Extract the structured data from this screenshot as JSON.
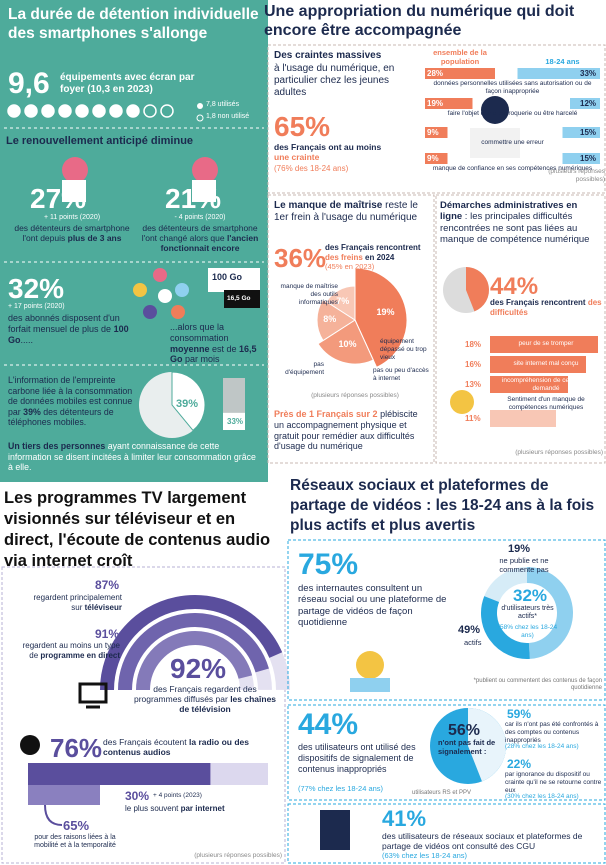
{
  "left_top": {
    "title": "La durée de détention individuelle des smartphones s'allonge",
    "equipment_value": "9,6",
    "equipment_text": "équipements avec écran par foyer (10,3 en 2023)",
    "legend_used": "7,8 utilisés",
    "legend_unused": "1,8 non utilisé"
  },
  "renewal": {
    "title": "Le renouvellement anticipé diminue",
    "stats": [
      {
        "value": "27%",
        "change": "+ 11 points (2020)",
        "text": "des détenteurs de smartphone l'ont depuis ",
        "bold": "plus de 3 ans"
      },
      {
        "value": "21%",
        "change": "- 4 points (2020)",
        "text": "des détenteurs de smartphone l'ont changé alors que ",
        "bold": "l'ancien fonctionnait encore"
      }
    ]
  },
  "data_plan": {
    "value": "32%",
    "change": "+ 17 points (2020)",
    "text": "des abonnés disposent d'un forfait mensuel de plus de ",
    "bold": "100 Go",
    "text_end": ".....",
    "text2": "...alors que la consommation ",
    "text2_bold": "moyenne",
    "text2_mid": " est de ",
    "text2_bold2": "16,5 Go",
    "text2_end": " par mois",
    "box_large": "100 Go",
    "box_small": "16,5 Go"
  },
  "carbon": {
    "text": "L'information de l'empreinte carbone liée à la consommation de données mobiles est connue par ",
    "text_bold": "39%",
    "text_end": " des détenteurs de téléphones mobiles.",
    "pie": {
      "value": 39,
      "label": "39%"
    },
    "bar": {
      "value": 33,
      "label": "33%"
    },
    "text2_bold": "Un tiers des personnes",
    "text2": " ayant connaissance de cette information se disent incitées à limiter leur consommation grâce à elle."
  },
  "digital": {
    "title": "Une appropriation du numérique qui doit encore être accompagnée",
    "fears": {
      "heading": "Des craintes massives",
      "text": "à l'usage du numérique, en particulier chez les jeunes adultes",
      "value": "65%",
      "value_text": "des Français ont au moins ",
      "value_highlight": "une crainte",
      "value_note": "(76% des 18-24 ans)",
      "col_all": "ensemble de la population",
      "col_young": "18-24 ans",
      "rows": [
        {
          "all": {
            "value": 28,
            "label": "28%"
          },
          "young": {
            "value": 33,
            "label": "33%"
          },
          "label": "données personnelles utilisées sans autorisation ou de façon inappropriée"
        },
        {
          "all": {
            "value": 19,
            "label": "19%"
          },
          "young": {
            "value": 12,
            "label": "12%"
          },
          "label": "faire l'objet d'une escroquerie ou être harcelé"
        },
        {
          "all": {
            "value": 9,
            "label": "9%"
          },
          "young": {
            "value": 15,
            "label": "15%"
          },
          "label": "commettre une erreur"
        },
        {
          "all": {
            "value": 9,
            "label": "9%"
          },
          "young": {
            "value": 15,
            "label": "15%"
          },
          "label": "manque de confiance en ses compétences numériques"
        }
      ],
      "note": "(plusieurs réponses possibles)"
    },
    "barriers": {
      "heading": "Le manque de maîtrise",
      "heading_rest": " reste le 1er frein à l'usage du numérique",
      "value": "36%",
      "value_text": "des Français rencontrent ",
      "value_highlight": "des freins",
      "value_text_end": " en 2024",
      "value_note": "(45% en 2023)",
      "slices": [
        {
          "value": 19,
          "label": "19%",
          "name": "manque de maîtrise des outils informatiques"
        },
        {
          "value": 10,
          "label": "10%",
          "name": "équipement dépassé ou trop vieux"
        },
        {
          "value": 8,
          "label": "8%",
          "name": "pas ou peu d'accès à internet"
        },
        {
          "value": 7,
          "label": "7%",
          "name": "pas d'équipement"
        }
      ],
      "note": "(plusieurs réponses possibles)",
      "footer_bold": "Près de 1 Français sur 2",
      "footer": " plébiscite un accompagnement physique et gratuit pour remédier aux difficultés d'usage du numérique"
    },
    "admin": {
      "heading": "Démarches administratives en ligne",
      "heading_rest": " : les principales difficultés rencontrées ne sont pas liées au manque de compétence numérique",
      "pie": {
        "value": 44,
        "label": "44%"
      },
      "value_text": "des Français rencontrent ",
      "value_highlight": "des difficultés",
      "bars": [
        {
          "value": 18,
          "label": "18%",
          "name": "peur de se tromper"
        },
        {
          "value": 16,
          "label": "16%",
          "name": "site internet mal conçu"
        },
        {
          "value": 13,
          "label": "13%",
          "name": "incompréhension de ce qui est demandé"
        },
        {
          "value": 11,
          "label": "11%",
          "name": "Sentiment d'un manque de compétences numériques"
        }
      ],
      "note": "(plusieurs réponses possibles)"
    }
  },
  "tv": {
    "title": "Les programmes TV largement visionnés sur téléviseur et en direct, l'écoute de contenus audio via internet croît",
    "arcs": [
      {
        "value": 87,
        "label": "87%",
        "text": "regardent principalement sur ",
        "bold": "téléviseur"
      },
      {
        "value": 91,
        "label": "91%",
        "text": "regardent au moins un type de ",
        "bold": "programme en direct"
      },
      {
        "value": 92,
        "label": "92%",
        "text": "des Français regardent des programmes diffusés par ",
        "bold": "les chaînes de télévision"
      }
    ],
    "audio": {
      "value": 76,
      "label": "76%",
      "text": "des Français écoutent ",
      "bold": "la radio ou des contenus audios"
    },
    "internet": {
      "value": 30,
      "label": "30%",
      "change": "+ 4 points (2023)",
      "text": "le plus souvent ",
      "bold": "par internet"
    },
    "mobility": {
      "value": 65,
      "label": "65%",
      "text": "pour des raisons liées à la mobilité et à la temporalité"
    },
    "note": "(plusieurs réponses possibles)"
  },
  "social": {
    "title": "Réseaux sociaux et plateformes de partage de vidéos : les 18-24 ans à la fois plus actifs et plus avertis",
    "usage": {
      "value": "75%",
      "text": "des internautes consultent un réseau social ou une plateforme de partage de vidéos de façon quotidienne",
      "segments": [
        {
          "value": 19,
          "label": "19%",
          "text": "ne publie et ne commente pas"
        },
        {
          "value": 49,
          "label": "49%",
          "text": "actifs"
        },
        {
          "value": 32,
          "label": "32%",
          "text": "d'utilisateurs très actifs*",
          "note": "(58% chez les 18-24 ans)"
        }
      ],
      "footnote": "*publient ou commentent des contenus de façon quotidienne"
    },
    "reporting": {
      "value": "44%",
      "text": "des utilisateurs ont utilisé des dispositifs de signalement de contenus inappropriés",
      "note": "(77% chez les 18-24 ans)",
      "pie": {
        "value": 56,
        "label": "56%",
        "text": "n'ont pas fait de signalement :"
      },
      "reasons": [
        {
          "value": 59,
          "label": "59%",
          "text": "car ils n'ont pas été confrontés à des comptes ou contenus inappropriés",
          "note": "(28% chez les 18-24 ans)"
        },
        {
          "value": 22,
          "label": "22%",
          "text": "par ignorance du dispositif ou crainte qu'il ne se retourne contre eux",
          "note": "(30% chez les 18-24 ans)"
        }
      ],
      "source": "utilisateurs RS et PPV"
    },
    "terms": {
      "value": "41%",
      "text": "des utilisateurs de réseaux sociaux et plateformes de partage de vidéos ont consulté des CGU",
      "note": "(63% chez les 18-24 ans)"
    }
  }
}
